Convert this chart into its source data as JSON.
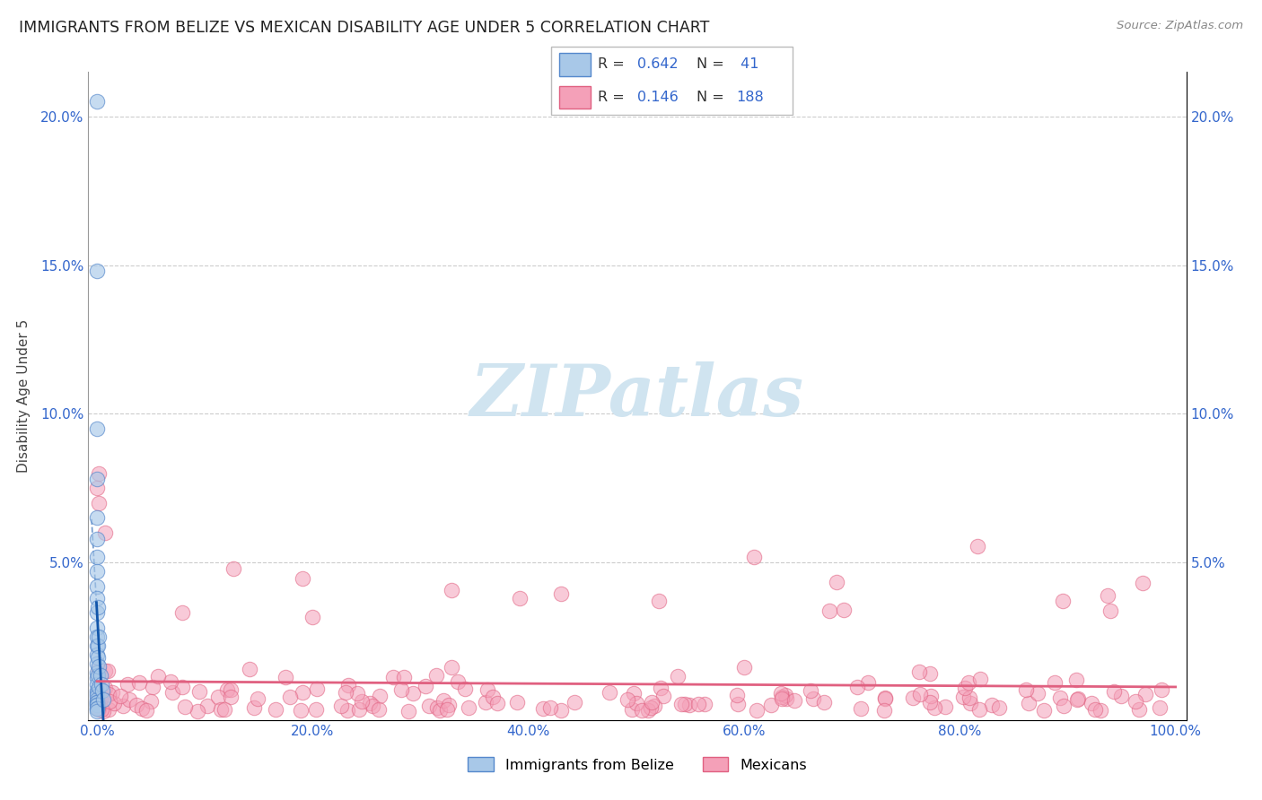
{
  "title": "IMMIGRANTS FROM BELIZE VS MEXICAN DISABILITY AGE UNDER 5 CORRELATION CHART",
  "source": "Source: ZipAtlas.com",
  "ylabel": "Disability Age Under 5",
  "belize_R": 0.642,
  "belize_N": 41,
  "mexican_R": 0.146,
  "mexican_N": 188,
  "belize_scatter_color": "#a8c8e8",
  "belize_edge_color": "#5588cc",
  "belize_line_color": "#1155aa",
  "mexican_scatter_color": "#f4a0b8",
  "mexican_edge_color": "#e06080",
  "mexican_line_color": "#e06080",
  "watermark_color": "#d0e4f0",
  "grid_color": "#cccccc",
  "tick_color": "#3366cc",
  "title_color": "#222222",
  "source_color": "#888888",
  "ylabel_color": "#444444",
  "ytick_vals": [
    0.0,
    0.05,
    0.1,
    0.15,
    0.2
  ],
  "ylim": [
    -0.003,
    0.215
  ],
  "xlim": [
    -0.008,
    1.01
  ]
}
